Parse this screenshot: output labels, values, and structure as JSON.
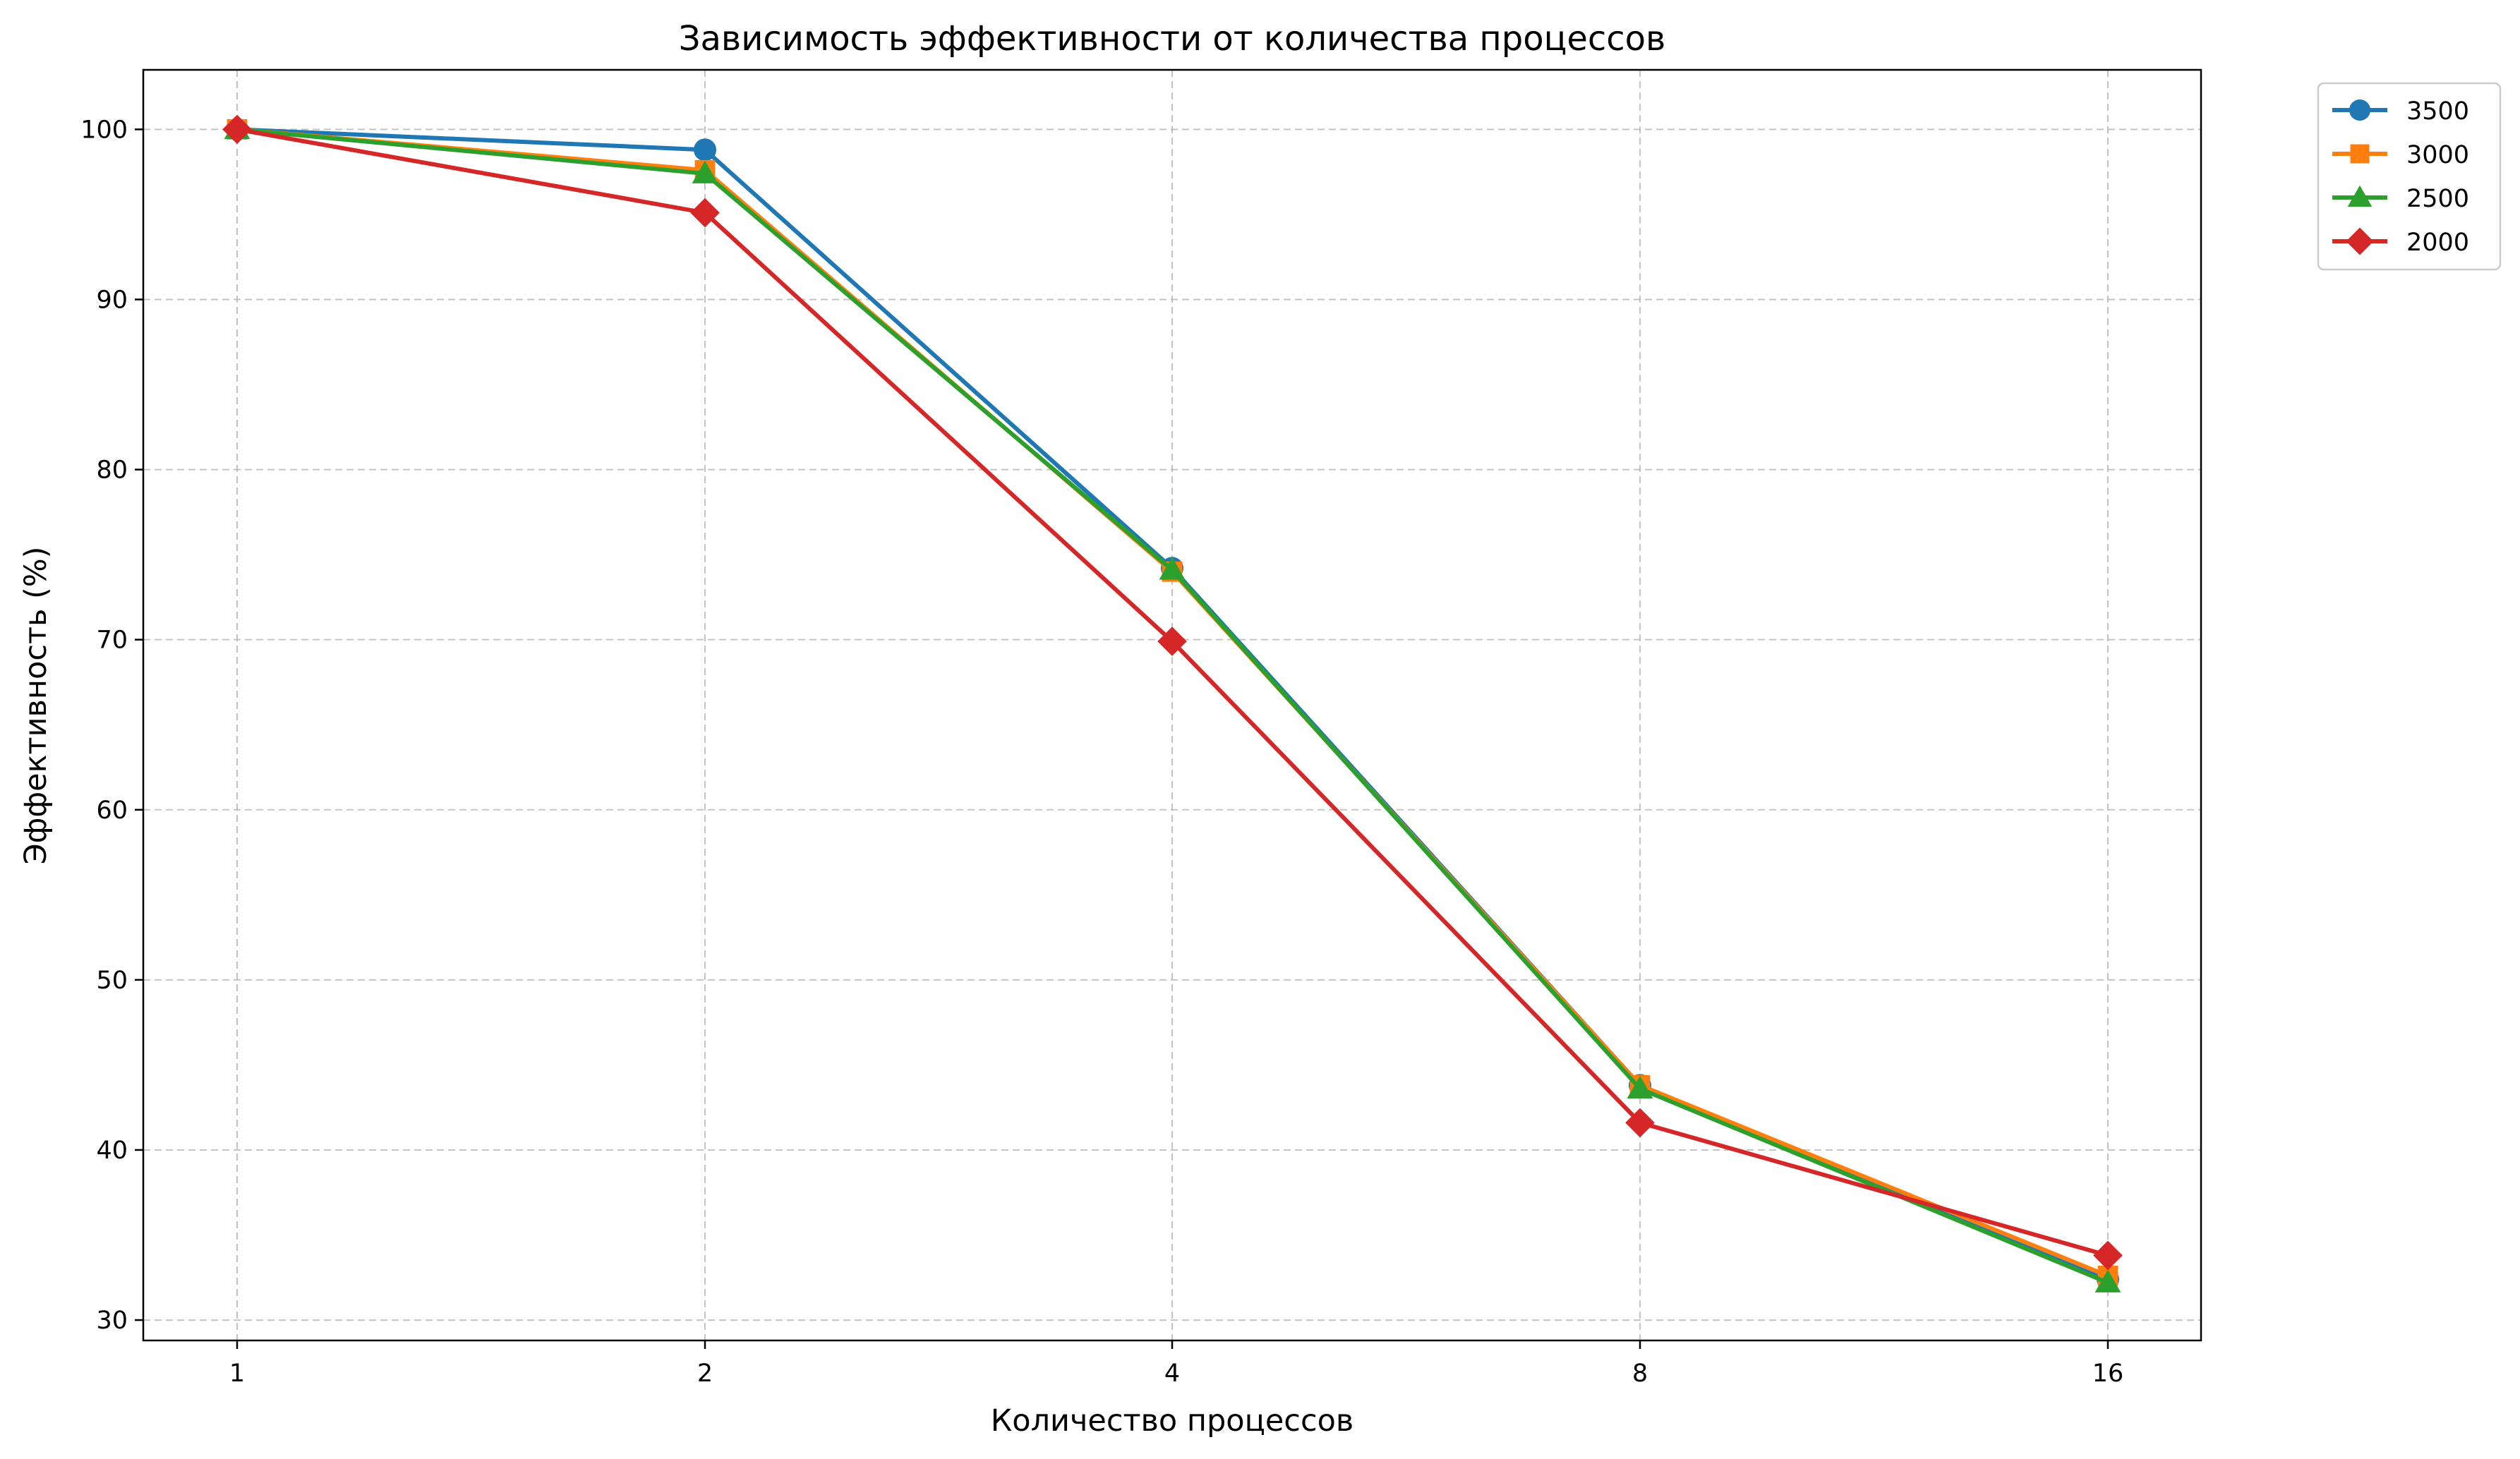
{
  "chart_data": {
    "type": "line",
    "title": "Зависимость эффективности от количества процессов",
    "xlabel": "Количество процессов",
    "ylabel": "Эффективность (%)",
    "x_scale": "log2",
    "categories": [
      "1",
      "2",
      "4",
      "8",
      "16"
    ],
    "x": [
      1,
      2,
      4,
      8,
      16
    ],
    "ylim": [
      28.8,
      103.5
    ],
    "yticks": [
      "30",
      "40",
      "50",
      "60",
      "70",
      "80",
      "90",
      "100"
    ],
    "ytick_values": [
      30,
      40,
      50,
      60,
      70,
      80,
      90,
      100
    ],
    "grid": true,
    "grid_style": "dashed",
    "legend_position": "outside-top-right",
    "series": [
      {
        "name": "3500",
        "color": "#1f77b4",
        "marker": "circle",
        "values": [
          100,
          98.8,
          74.2,
          43.8,
          32.4
        ]
      },
      {
        "name": "3000",
        "color": "#ff7f0e",
        "marker": "square",
        "values": [
          100,
          97.6,
          74.0,
          43.8,
          32.6
        ]
      },
      {
        "name": "2500",
        "color": "#2ca02c",
        "marker": "triangle",
        "values": [
          100,
          97.4,
          74.1,
          43.6,
          32.2
        ]
      },
      {
        "name": "2000",
        "color": "#d62728",
        "marker": "diamond",
        "values": [
          100,
          95.1,
          69.9,
          41.6,
          33.8
        ]
      }
    ]
  }
}
